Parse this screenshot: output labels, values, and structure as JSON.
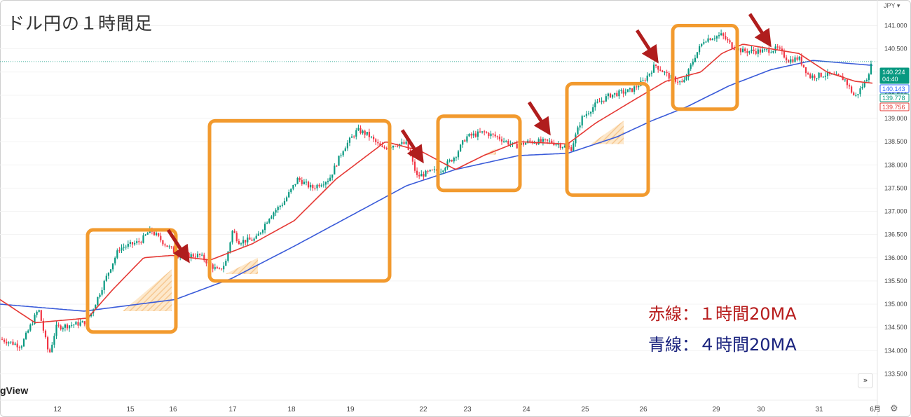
{
  "title": "ドル円の１時間足",
  "watermark": "gView",
  "currency": "JPY",
  "legend": {
    "red": "赤線：１時間20MA",
    "blue": "青線：４時間20MA"
  },
  "price_tags": [
    {
      "label": "140.224",
      "sub": "04:40",
      "value": 140.224,
      "color": "#089981",
      "filled": true
    },
    {
      "label": "140.143",
      "value": 140.143,
      "color": "#2962ff",
      "filled": false
    },
    {
      "label": "139.778",
      "value": 139.778,
      "color": "#089981",
      "filled": false
    },
    {
      "label": "139.756",
      "value": 139.756,
      "color": "#e53935",
      "filled": false
    }
  ],
  "colors": {
    "up": "#089981",
    "down": "#f23645",
    "ma_red": "#e53935",
    "ma_blue": "#3a5bd9",
    "box": "#f29a2e",
    "arrow": "#b01d1d",
    "price_line": "#089981"
  },
  "icons": {
    "scroll": "double-chevron-right-icon",
    "settings": "gear-icon"
  },
  "chart_data": {
    "type": "candlestick",
    "title": "ドル円の１時間足",
    "ylim": [
      133.4,
      141.4
    ],
    "y_ticks": [
      133.5,
      134.0,
      134.5,
      135.0,
      135.5,
      136.0,
      136.5,
      137.0,
      137.5,
      138.0,
      138.5,
      139.0,
      139.5,
      140.0,
      140.5,
      141.0
    ],
    "y_tick_labels": [
      "133.500",
      "134.000",
      "134.500",
      "135.000",
      "135.500",
      "136.000",
      "136.500",
      "137.000",
      "137.500",
      "138.000",
      "138.500",
      "139.000",
      "139.500",
      "140.000",
      "140.500",
      "141.000"
    ],
    "x_ticks": [
      "12",
      "15",
      "16",
      "17",
      "18",
      "19",
      "22",
      "23",
      "24",
      "25",
      "26",
      "29",
      "30",
      "31",
      "6月"
    ],
    "current_price": 140.224,
    "ma_red_anchors": [
      [
        0,
        135.1
      ],
      [
        50,
        134.6
      ],
      [
        125,
        134.7
      ],
      [
        160,
        135.3
      ],
      [
        205,
        136.0
      ],
      [
        245,
        136.05
      ],
      [
        300,
        135.95
      ],
      [
        360,
        136.3
      ],
      [
        420,
        136.8
      ],
      [
        480,
        137.7
      ],
      [
        550,
        138.5
      ],
      [
        600,
        138.3
      ],
      [
        650,
        137.9
      ],
      [
        690,
        138.2
      ],
      [
        740,
        138.5
      ],
      [
        810,
        138.45
      ],
      [
        850,
        138.9
      ],
      [
        905,
        139.4
      ],
      [
        950,
        139.8
      ],
      [
        1000,
        140.0
      ],
      [
        1030,
        140.4
      ],
      [
        1060,
        140.6
      ],
      [
        1100,
        140.5
      ],
      [
        1140,
        140.4
      ],
      [
        1180,
        140.0
      ],
      [
        1220,
        139.8
      ],
      [
        1245,
        139.76
      ]
    ],
    "ma_blue_anchors": [
      [
        0,
        135.0
      ],
      [
        120,
        134.85
      ],
      [
        250,
        135.1
      ],
      [
        330,
        135.55
      ],
      [
        420,
        136.25
      ],
      [
        500,
        136.9
      ],
      [
        580,
        137.55
      ],
      [
        650,
        137.9
      ],
      [
        740,
        138.2
      ],
      [
        810,
        138.25
      ],
      [
        880,
        138.6
      ],
      [
        930,
        138.95
      ],
      [
        980,
        139.25
      ],
      [
        1040,
        139.7
      ],
      [
        1100,
        140.05
      ],
      [
        1160,
        140.25
      ],
      [
        1245,
        140.143
      ]
    ],
    "price_path": [
      [
        0,
        134.25
      ],
      [
        30,
        134.1
      ],
      [
        55,
        134.9
      ],
      [
        70,
        133.9
      ],
      [
        80,
        134.5
      ],
      [
        120,
        134.6
      ],
      [
        130,
        134.8
      ],
      [
        155,
        135.7
      ],
      [
        170,
        136.2
      ],
      [
        200,
        136.35
      ],
      [
        215,
        136.6
      ],
      [
        235,
        136.3
      ],
      [
        255,
        136.05
      ],
      [
        285,
        136.05
      ],
      [
        300,
        135.85
      ],
      [
        312,
        135.7
      ],
      [
        322,
        135.9
      ],
      [
        332,
        136.6
      ],
      [
        340,
        136.35
      ],
      [
        365,
        136.4
      ],
      [
        385,
        136.9
      ],
      [
        405,
        137.2
      ],
      [
        425,
        137.7
      ],
      [
        445,
        137.5
      ],
      [
        470,
        137.7
      ],
      [
        490,
        138.35
      ],
      [
        510,
        138.75
      ],
      [
        525,
        138.65
      ],
      [
        545,
        138.35
      ],
      [
        565,
        138.45
      ],
      [
        580,
        138.45
      ],
      [
        595,
        137.75
      ],
      [
        615,
        137.85
      ],
      [
        630,
        137.9
      ],
      [
        650,
        138.2
      ],
      [
        665,
        138.6
      ],
      [
        690,
        138.7
      ],
      [
        710,
        138.6
      ],
      [
        735,
        138.4
      ],
      [
        755,
        138.5
      ],
      [
        785,
        138.5
      ],
      [
        805,
        138.4
      ],
      [
        815,
        138.35
      ],
      [
        830,
        139.0
      ],
      [
        850,
        139.3
      ],
      [
        870,
        139.5
      ],
      [
        900,
        139.6
      ],
      [
        918,
        139.8
      ],
      [
        935,
        140.15
      ],
      [
        955,
        139.9
      ],
      [
        975,
        139.75
      ],
      [
        992,
        140.35
      ],
      [
        1005,
        140.7
      ],
      [
        1030,
        140.8
      ],
      [
        1045,
        140.55
      ],
      [
        1060,
        140.45
      ],
      [
        1090,
        140.45
      ],
      [
        1110,
        140.5
      ],
      [
        1125,
        140.25
      ],
      [
        1140,
        140.3
      ],
      [
        1155,
        139.9
      ],
      [
        1180,
        139.95
      ],
      [
        1205,
        139.85
      ],
      [
        1220,
        139.45
      ],
      [
        1235,
        139.8
      ],
      [
        1245,
        140.22
      ]
    ],
    "highlight_boxes": [
      {
        "x0": 125,
        "x1": 251,
        "y_top": 136.6,
        "y_bottom": 134.4
      },
      {
        "x0": 299,
        "x1": 556,
        "y_top": 138.95,
        "y_bottom": 135.5
      },
      {
        "x0": 625,
        "x1": 742,
        "y_top": 139.05,
        "y_bottom": 137.45
      },
      {
        "x0": 809,
        "x1": 925,
        "y_top": 139.75,
        "y_bottom": 137.35
      },
      {
        "x0": 960,
        "x1": 1052,
        "y_top": 141.0,
        "y_bottom": 139.2
      }
    ],
    "arrows": [
      {
        "x": 268,
        "y": 135.95
      },
      {
        "x": 602,
        "y": 138.1
      },
      {
        "x": 783,
        "y": 138.7
      },
      {
        "x": 937,
        "y": 140.25
      },
      {
        "x": 1098,
        "y": 140.6
      }
    ],
    "shaded_wedges": [
      {
        "apex_x": 175,
        "apex_y": 134.85,
        "x_right": 245,
        "y_top": 135.75
      },
      {
        "apex_x": 322,
        "apex_y": 135.65,
        "x_right": 368,
        "y_top": 136.0
      },
      {
        "apex_x": 690,
        "apex_y": 138.22,
        "x_right": 708,
        "y_top": 138.35
      },
      {
        "apex_x": 843,
        "apex_y": 138.45,
        "x_right": 890,
        "y_top": 138.95
      }
    ]
  }
}
